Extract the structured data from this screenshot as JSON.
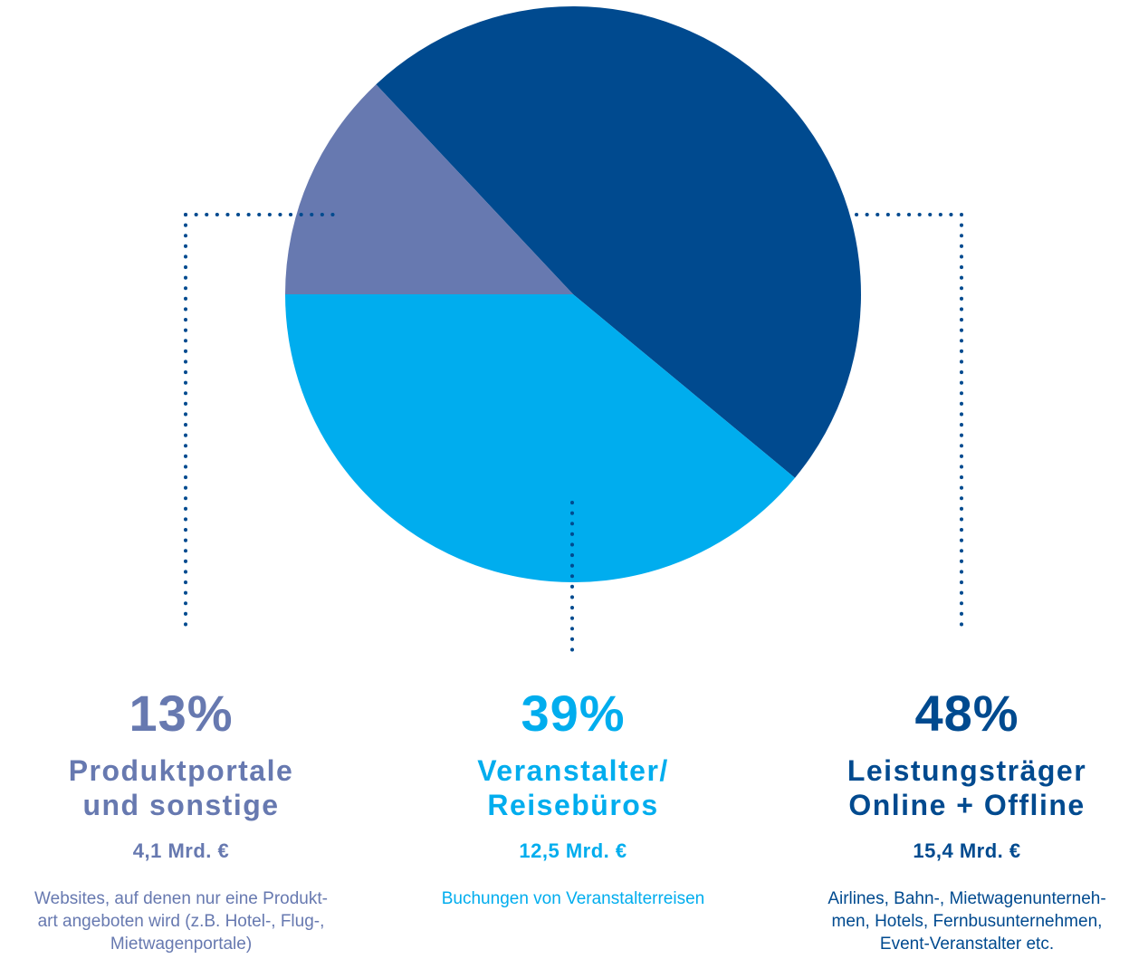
{
  "colors": {
    "leistungstraeger": "#004a8f",
    "veranstalter": "#00adee",
    "produktportale": "#6779b0"
  },
  "chart_data": {
    "type": "pie",
    "unit": "%",
    "slices": [
      {
        "key": "leistungstraeger",
        "percent_label": "48%",
        "value": 48,
        "name_lines": [
          "Leistungsträger",
          "Online + Offline"
        ],
        "amount": "15,4 Mrd. €",
        "description_lines": [
          "Airlines, Bahn-, Mietwagenunterneh-",
          "men, Hotels, Fernbusunternehmen,",
          "Event-Veranstalter etc."
        ],
        "color": "#004a8f"
      },
      {
        "key": "veranstalter",
        "percent_label": "39%",
        "value": 39,
        "name_lines": [
          "Veranstalter/",
          "Reisebüros"
        ],
        "amount": "12,5 Mrd. €",
        "description_lines": [
          "Buchungen von Veranstalterreisen"
        ],
        "color": "#00adee"
      },
      {
        "key": "produktportale",
        "percent_label": "13%",
        "value": 13,
        "name_lines": [
          "Produktportale",
          "und sonstige"
        ],
        "amount": "4,1 Mrd. €",
        "description_lines": [
          "Websites, auf denen nur eine Produkt-",
          "art angeboten wird (z.B. Hotel-, Flug-,",
          "Mietwagenportale)"
        ],
        "color": "#6779b0"
      }
    ]
  }
}
